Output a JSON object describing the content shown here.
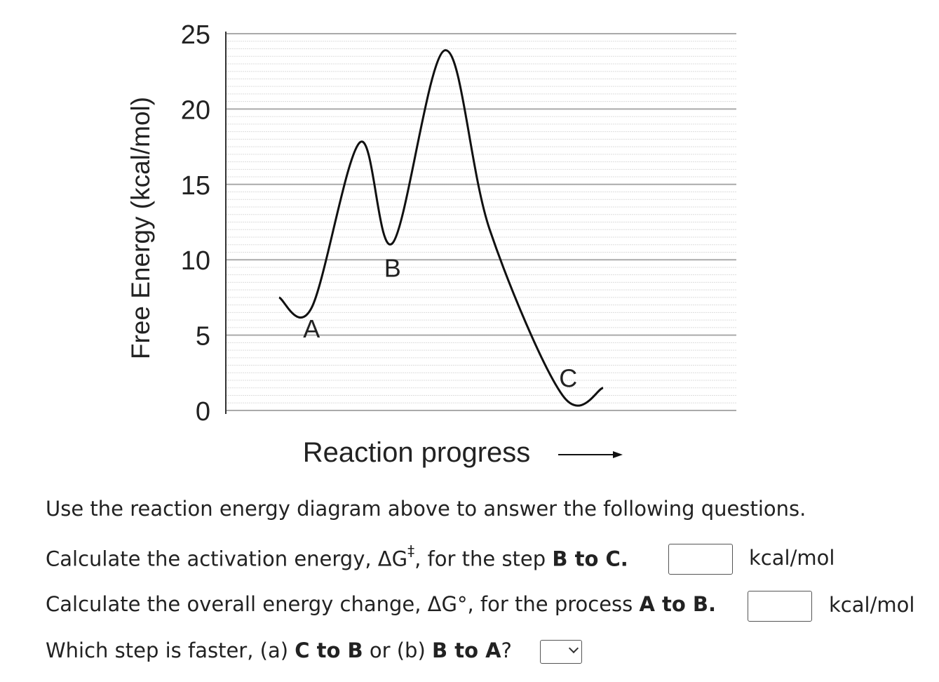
{
  "chart_data": {
    "type": "line",
    "ylabel": "Free Energy (kcal/mol)",
    "xlabel": "Reaction progress",
    "ylim": [
      0,
      25
    ],
    "yticks": [
      0,
      5,
      10,
      15,
      20,
      25
    ],
    "grid": true,
    "series": [
      {
        "x": [
          0.0,
          0.08,
          0.2,
          0.28,
          0.41,
          0.52,
          0.7,
          0.8
        ],
        "y": [
          7.5,
          6.8,
          17.8,
          11.1,
          23.9,
          12.0,
          1.0,
          1.5
        ]
      }
    ],
    "point_labels": [
      {
        "label": "A",
        "x": 0.08,
        "y": 6.8
      },
      {
        "label": "B",
        "x": 0.28,
        "y": 11.1
      },
      {
        "label": "C",
        "x": 0.7,
        "y": 1.0
      }
    ]
  },
  "questions": {
    "intro": "Use the reaction energy diagram above to answer the following questions.",
    "q1": {
      "pre": "Calculate the activation energy, ΔG",
      "dagger": "‡",
      "mid": ", for the step ",
      "bold": "B to C.",
      "unit": "kcal/mol"
    },
    "q2": {
      "pre": "Calculate the overall energy change, ΔG°, for the process ",
      "bold": "A to B.",
      "unit": "kcal/mol"
    },
    "q3": {
      "pre": "Which step is faster, (a) ",
      "bold1": "C to B",
      "mid": " or (b) ",
      "bold2": "B to A",
      "post": "?"
    }
  }
}
